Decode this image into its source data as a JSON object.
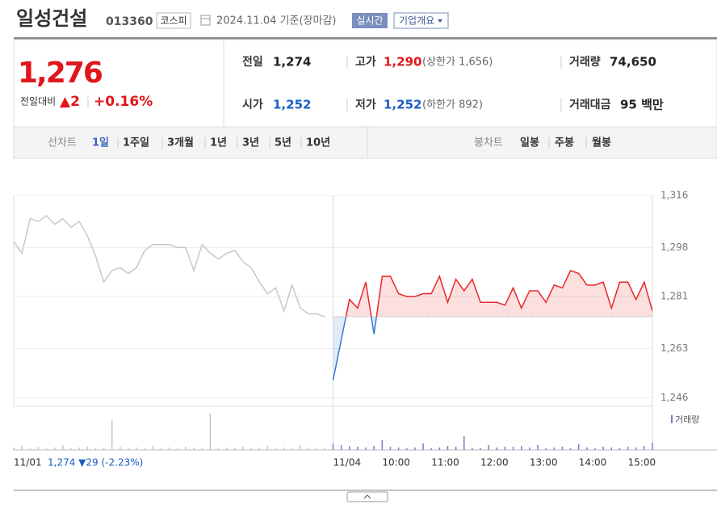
{
  "header": {
    "name": "일성건설",
    "code": "013360",
    "market": "코스피",
    "date": "2024.11.04 기준(장마감)",
    "realtime": "실시간",
    "company": "기업개요"
  },
  "quote": {
    "price": "1,276",
    "change_label": "전일대비",
    "change": "▲2",
    "change_rate": "+0.16%"
  },
  "stats": [
    [
      {
        "label": "전일",
        "value": "1,274"
      },
      {
        "label": "고가",
        "value": "1,290",
        "note": "(상한가 1,656)"
      },
      {
        "label": "거래량",
        "value": "74,650"
      }
    ],
    [
      {
        "label": "시가",
        "value": "1,252"
      },
      {
        "label": "저가",
        "value": "1,252",
        "note": "(하한가 892)"
      },
      {
        "label": "거래대금",
        "value": "95 백만"
      }
    ]
  ],
  "tabs": {
    "line_label": "선차트",
    "periods": [
      "1일",
      "1주일",
      "3개월",
      "1년",
      "3년",
      "5년",
      "10년"
    ],
    "selected": 0,
    "candle_label": "봉차트",
    "candles": [
      "일봉",
      "주봉",
      "월봉"
    ]
  },
  "chart_data": [
    {
      "type": "line",
      "categories": [
        "11/01",
        null,
        null,
        null,
        null,
        null,
        null,
        null,
        null,
        null,
        null,
        null,
        null,
        null,
        null,
        null,
        null,
        null,
        null,
        null,
        null,
        null,
        null,
        null,
        null,
        null,
        null,
        null,
        null,
        null,
        null,
        null,
        null,
        null,
        null,
        null,
        null,
        null,
        null,
        "11/04",
        null,
        null,
        null,
        null,
        null,
        "10:00",
        null,
        null,
        null,
        null,
        null,
        "11:00",
        null,
        null,
        null,
        null,
        null,
        "12:00",
        null,
        null,
        null,
        null,
        null,
        "13:00",
        null,
        null,
        null,
        null,
        null,
        "14:00",
        null,
        null,
        null,
        null,
        null,
        "15:00",
        null,
        null,
        null
      ],
      "series": [
        {
          "color": "#c8c8c8",
          "values": [
            1300,
            1296,
            1308,
            1307,
            1309,
            1306,
            1308,
            1305,
            1307,
            1302,
            1295,
            1286,
            1290,
            1291,
            1289,
            1291,
            1297,
            1299,
            1299,
            1299,
            1298,
            1298,
            1290,
            1299,
            1296,
            1294,
            1296,
            1297,
            1293,
            1291,
            1286,
            1282,
            1284,
            1276,
            1285,
            1277,
            1275,
            1275,
            1274,
            null,
            null,
            null,
            null,
            null,
            null,
            null,
            null,
            null,
            null,
            null,
            null,
            null,
            null,
            null,
            null,
            null,
            null,
            null,
            null,
            null,
            null,
            null,
            null,
            null,
            null,
            null,
            null,
            null,
            null,
            null,
            null,
            null,
            null,
            null,
            null,
            null,
            null,
            null,
            null
          ]
        },
        {
          "color": "#e8272b",
          "down_color": "#3a78d0",
          "values": [
            null,
            null,
            null,
            null,
            null,
            null,
            null,
            null,
            null,
            null,
            null,
            null,
            null,
            null,
            null,
            null,
            null,
            null,
            null,
            null,
            null,
            null,
            null,
            null,
            null,
            null,
            null,
            null,
            null,
            null,
            null,
            null,
            null,
            null,
            null,
            null,
            null,
            null,
            null,
            1252,
            1266,
            1280,
            1277,
            1286,
            1268,
            1288,
            1288,
            1282,
            1281,
            1281,
            1282,
            1282,
            1288,
            1279,
            1287,
            1283,
            1287,
            1279,
            1279,
            1279,
            1278,
            1284,
            1277,
            1283,
            1283,
            1279,
            1285,
            1284,
            1290,
            1289,
            1285,
            1285,
            1286,
            1277,
            1286,
            1286,
            1280,
            1286,
            1276
          ]
        }
      ],
      "baseline": 1274,
      "ylim": [
        1243,
        1316
      ],
      "yticks": [
        {
          "value": 1316,
          "label": "1,316"
        },
        {
          "value": 1298,
          "label": "1,298"
        },
        {
          "value": 1281,
          "label": "1,281"
        },
        {
          "value": 1263,
          "label": "1,263"
        },
        {
          "value": 1246,
          "label": "1,246"
        }
      ],
      "grid": true,
      "annotation": "1,274 ▼29 (-2.23%)"
    },
    {
      "type": "bar",
      "series": [
        {
          "color": "#c4c4c4",
          "values": [
            3,
            5,
            2,
            4,
            2,
            3,
            6,
            2,
            3,
            4,
            2,
            3,
            37,
            4,
            2,
            3,
            2,
            5,
            2,
            3,
            2,
            4,
            3,
            2,
            45,
            2,
            3,
            2,
            4,
            2,
            3,
            5,
            2,
            3,
            2,
            6,
            3,
            2,
            2,
            null,
            null,
            null,
            null,
            null,
            null,
            null,
            null,
            null,
            null,
            null,
            null,
            null,
            null,
            null,
            null,
            null,
            null,
            null,
            null,
            null,
            null,
            null,
            null,
            null,
            null,
            null,
            null,
            null,
            null,
            null,
            null,
            null,
            null,
            null,
            null,
            null,
            null,
            null,
            null
          ]
        },
        {
          "name": "거래량",
          "color": "#8c72c8",
          "values": [
            null,
            null,
            null,
            null,
            null,
            null,
            null,
            null,
            null,
            null,
            null,
            null,
            null,
            null,
            null,
            null,
            null,
            null,
            null,
            null,
            null,
            null,
            null,
            null,
            null,
            null,
            null,
            null,
            null,
            null,
            null,
            null,
            null,
            null,
            null,
            null,
            null,
            null,
            null,
            8,
            6,
            5,
            4,
            3,
            5,
            12,
            4,
            3,
            2,
            3,
            8,
            2,
            3,
            5,
            4,
            17,
            2,
            2,
            6,
            3,
            4,
            4,
            5,
            3,
            6,
            2,
            3,
            4,
            2,
            7,
            3,
            2,
            4,
            3,
            2,
            4,
            3,
            5,
            9
          ]
        }
      ],
      "ylim": [
        0,
        50
      ]
    }
  ]
}
